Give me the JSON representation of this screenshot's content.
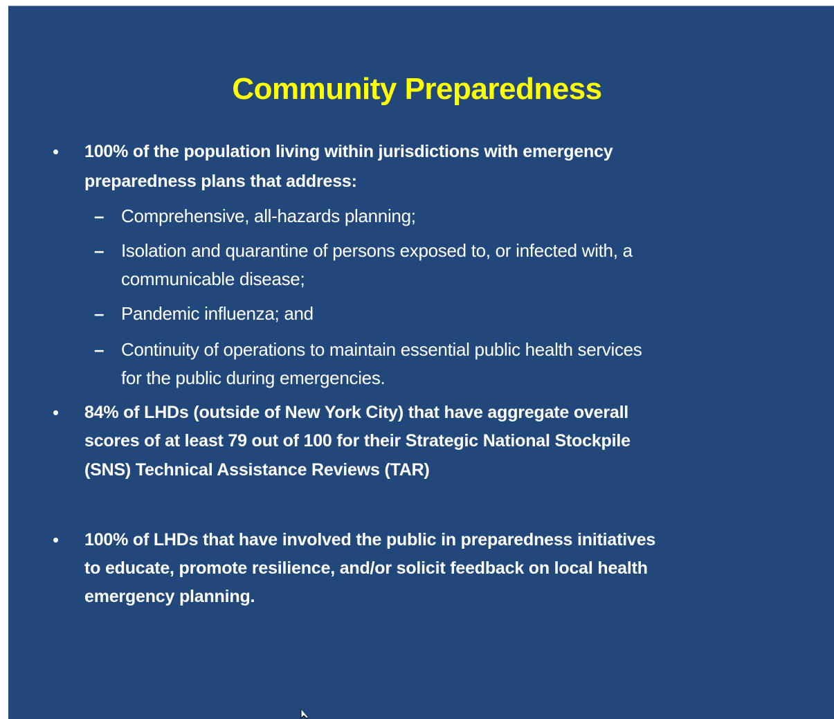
{
  "slide": {
    "title": "Community Preparedness",
    "items": [
      {
        "level": 1,
        "lines": [
          "100% of the population living within jurisdictions with emergency",
          "preparedness plans that address:"
        ]
      },
      {
        "level": 2,
        "lines": [
          "Comprehensive, all-hazards planning;"
        ]
      },
      {
        "level": 2,
        "lines": [
          "Isolation and quarantine of persons exposed to, or infected with, a",
          "communicable disease;"
        ]
      },
      {
        "level": 2,
        "lines": [
          "Pandemic influenza; and"
        ]
      },
      {
        "level": 2,
        "lines": [
          "Continuity of operations to maintain essential public health services",
          "for the public during emergencies."
        ]
      },
      {
        "level": 1,
        "lines": [
          "84% of LHDs (outside of New York City) that have aggregate overall",
          "scores of at least 79 out of 100 for their Strategic National Stockpile",
          "(SNS) Technical Assistance Reviews (TAR)"
        ]
      },
      {
        "level": 1,
        "lines": [
          "100% of LHDs that have involved the public in preparedness initiatives",
          "to educate, promote resilience, and/or solicit feedback on local health",
          "emergency planning."
        ]
      }
    ]
  }
}
